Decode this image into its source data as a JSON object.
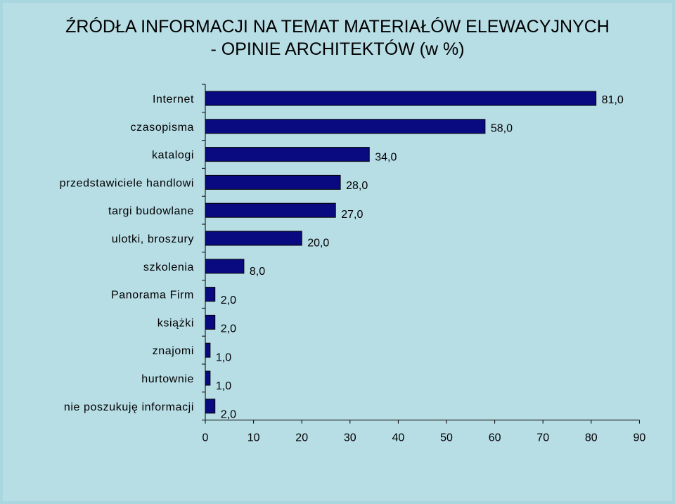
{
  "title": {
    "line1": "ŹRÓDŁA INFORMACJI NA TEMAT MATERIAŁÓW ELEWACYJNYCH",
    "line2": "- OPINIE ARCHITEKTÓW (w %)"
  },
  "chart_data": {
    "type": "bar",
    "orientation": "horizontal",
    "title": "ŹRÓDŁA INFORMACJI NA TEMAT MATERIAŁÓW ELEWACYJNYCH - OPINIE ARCHITEKTÓW (w %)",
    "categories": [
      "Internet",
      "czasopisma",
      "katalogi",
      "przedstawiciele handlowi",
      "targi budowlane",
      "ulotki, broszury",
      "szkolenia",
      "Panorama Firm",
      "książki",
      "znajomi",
      "hurtownie",
      "nie poszukuję informacji"
    ],
    "values": [
      81,
      58,
      34,
      28,
      27,
      20,
      8,
      2,
      2,
      1,
      1,
      2
    ],
    "value_labels": [
      "81,0",
      "58,0",
      "34,0",
      "28,0",
      "27,0",
      "20,0",
      "8,0",
      "2,0",
      "2,0",
      "1,0",
      "1,0",
      "2,0"
    ],
    "xticks": [
      0,
      10,
      20,
      30,
      40,
      50,
      60,
      70,
      80,
      90
    ],
    "xlim": [
      0,
      90
    ],
    "xlabel": "",
    "ylabel": "",
    "grid": false,
    "legend": "none",
    "bar_color": "#0a0a80",
    "bar_border_color": "#000000",
    "background_color": "#b7dde5"
  }
}
